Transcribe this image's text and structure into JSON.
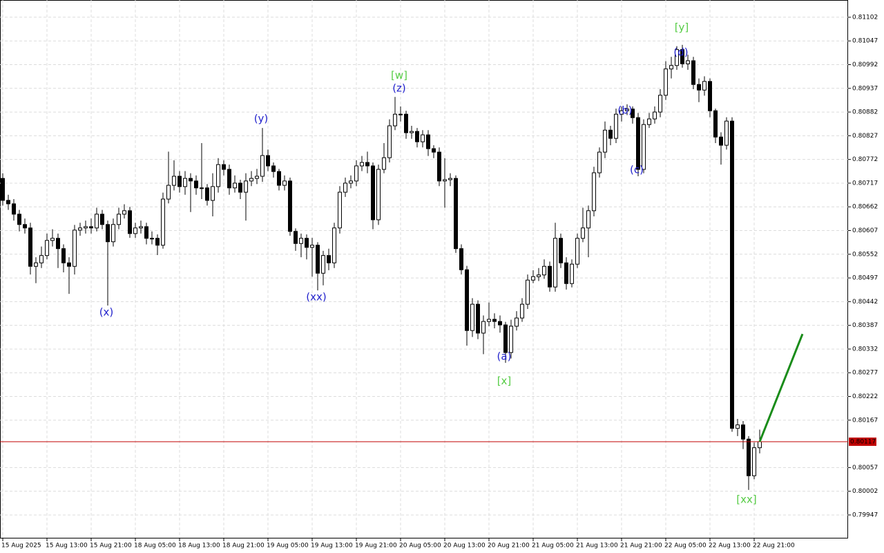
{
  "chart_data": {
    "type": "candlestick",
    "xlim": [
      -0.5,
      153
    ],
    "ylim": [
      0.79894,
      0.81142
    ],
    "yticks": [
      0.81102,
      0.81047,
      0.80992,
      0.80937,
      0.80882,
      0.80827,
      0.80772,
      0.80717,
      0.80662,
      0.80607,
      0.80552,
      0.80497,
      0.80442,
      0.80387,
      0.80332,
      0.80277,
      0.80222,
      0.80167,
      0.80057,
      0.80002,
      0.79947
    ],
    "xticks": [
      {
        "value": 0,
        "label": "15 Aug 2025"
      },
      {
        "value": 8,
        "label": "15 Aug 13:00"
      },
      {
        "value": 16,
        "label": "15 Aug 21:00"
      },
      {
        "value": 24,
        "label": "18 Aug 05:00"
      },
      {
        "value": 32,
        "label": "18 Aug 13:00"
      },
      {
        "value": 40,
        "label": "18 Aug 21:00"
      },
      {
        "value": 48,
        "label": "19 Aug 05:00"
      },
      {
        "value": 56,
        "label": "19 Aug 13:00"
      },
      {
        "value": 64,
        "label": "19 Aug 21:00"
      },
      {
        "value": 72,
        "label": "20 Aug 05:00"
      },
      {
        "value": 80,
        "label": "20 Aug 13:00"
      },
      {
        "value": 88,
        "label": "20 Aug 21:00"
      },
      {
        "value": 96,
        "label": "21 Aug 05:00"
      },
      {
        "value": 104,
        "label": "21 Aug 13:00"
      },
      {
        "value": 112,
        "label": "21 Aug 21:00"
      },
      {
        "value": 120,
        "label": "22 Aug 05:00"
      },
      {
        "value": 128,
        "label": "22 Aug 13:00"
      },
      {
        "value": 136,
        "label": "22 Aug 21:00"
      }
    ],
    "grid": true,
    "bull_color": "#ffffff",
    "bear_color": "#000000",
    "open": [
      0.80728,
      0.80677,
      0.80669,
      0.80645,
      0.80621,
      0.80613,
      0.80524,
      0.80532,
      0.80549,
      0.80584,
      0.80589,
      0.80565,
      0.80532,
      0.80524,
      0.80608,
      0.80613,
      0.80616,
      0.80613,
      0.80645,
      0.80621,
      0.80581,
      0.80621,
      0.80645,
      0.80653,
      0.806,
      0.80613,
      0.80616,
      0.80589,
      0.80589,
      0.80573,
      0.8068,
      0.80712,
      0.80733,
      0.80709,
      0.80728,
      0.80722,
      0.80706,
      0.80706,
      0.80677,
      0.80709,
      0.8076,
      0.80749,
      0.80706,
      0.80717,
      0.80696,
      0.80722,
      0.80728,
      0.80733,
      0.80781,
      0.80757,
      0.80744,
      0.80712,
      0.80722,
      0.80605,
      0.80577,
      0.80589,
      0.80568,
      0.80573,
      0.80508,
      0.80549,
      0.80532,
      0.80613,
      0.80696,
      0.80717,
      0.80722,
      0.80757,
      0.80765,
      0.80757,
      0.80632,
      0.80749,
      0.80776,
      0.8085,
      0.80877,
      0.80877,
      0.80834,
      0.80837,
      0.80813,
      0.80829,
      0.80797,
      0.80789,
      0.80722,
      0.80725,
      0.80728,
      0.80565,
      0.80516,
      0.80375,
      0.80436,
      0.80369,
      0.80396,
      0.80401,
      0.80396,
      0.80388,
      0.80324,
      0.80385,
      0.80404,
      0.80436,
      0.80492,
      0.805,
      0.80504,
      0.80524,
      0.80476,
      0.80589,
      0.80532,
      0.80484,
      0.80529,
      0.80589,
      0.80613,
      0.80653,
      0.80741,
      0.80789,
      0.8084,
      0.80821,
      0.80877,
      0.80885,
      0.80889,
      0.80869,
      0.80749,
      0.80853,
      0.80866,
      0.80882,
      0.80921,
      0.80982,
      0.8099,
      0.81027,
      0.80994,
      0.81001,
      0.80946,
      0.80933,
      0.80953,
      0.80885,
      0.80824,
      0.80805,
      0.80861,
      0.80148,
      0.80156,
      0.80123,
      0.80038,
      0.80103
    ],
    "close": [
      0.80677,
      0.80669,
      0.80645,
      0.80621,
      0.80613,
      0.80524,
      0.80532,
      0.80549,
      0.80584,
      0.80589,
      0.80565,
      0.80532,
      0.80524,
      0.80608,
      0.80613,
      0.80616,
      0.80613,
      0.80645,
      0.80621,
      0.80581,
      0.80621,
      0.80645,
      0.80653,
      0.806,
      0.80613,
      0.80616,
      0.80589,
      0.80589,
      0.80573,
      0.8068,
      0.80712,
      0.80733,
      0.80709,
      0.80728,
      0.80722,
      0.80706,
      0.80706,
      0.80677,
      0.80709,
      0.8076,
      0.80749,
      0.80706,
      0.80717,
      0.80696,
      0.80722,
      0.80728,
      0.80733,
      0.80781,
      0.80757,
      0.80744,
      0.80712,
      0.80722,
      0.80605,
      0.80577,
      0.80589,
      0.80568,
      0.80573,
      0.80508,
      0.80549,
      0.80532,
      0.80613,
      0.80696,
      0.80717,
      0.80722,
      0.80757,
      0.80765,
      0.80757,
      0.80632,
      0.80749,
      0.80776,
      0.8085,
      0.80877,
      0.80877,
      0.80834,
      0.80837,
      0.80813,
      0.80829,
      0.80797,
      0.80789,
      0.80722,
      0.80725,
      0.80728,
      0.80565,
      0.80516,
      0.80375,
      0.80436,
      0.80369,
      0.80396,
      0.80401,
      0.80396,
      0.80388,
      0.80324,
      0.80385,
      0.80404,
      0.80436,
      0.80492,
      0.805,
      0.80504,
      0.80524,
      0.80476,
      0.80589,
      0.80532,
      0.80484,
      0.80529,
      0.80589,
      0.80613,
      0.80653,
      0.80741,
      0.80789,
      0.8084,
      0.80821,
      0.80877,
      0.80885,
      0.80889,
      0.80869,
      0.80749,
      0.80853,
      0.80866,
      0.80882,
      0.80921,
      0.80982,
      0.8099,
      0.81027,
      0.80994,
      0.81001,
      0.80946,
      0.80933,
      0.80953,
      0.80885,
      0.80824,
      0.80805,
      0.80861,
      0.80148,
      0.80156,
      0.80123,
      0.80038,
      0.80103,
      0.80117
    ],
    "high": [
      0.8074,
      0.8069,
      0.8068,
      0.80655,
      0.80635,
      0.80625,
      0.80545,
      0.8057,
      0.806,
      0.8061,
      0.806,
      0.80575,
      0.80545,
      0.8062,
      0.80625,
      0.8063,
      0.80635,
      0.8066,
      0.80655,
      0.8063,
      0.80635,
      0.8066,
      0.80668,
      0.80662,
      0.80625,
      0.8063,
      0.80625,
      0.80605,
      0.80598,
      0.80695,
      0.8079,
      0.8077,
      0.80745,
      0.80745,
      0.8074,
      0.80735,
      0.8081,
      0.80715,
      0.8074,
      0.80775,
      0.8077,
      0.8076,
      0.80735,
      0.80725,
      0.8074,
      0.80745,
      0.8075,
      0.80845,
      0.80795,
      0.80765,
      0.8075,
      0.80735,
      0.8073,
      0.80612,
      0.806,
      0.80598,
      0.8059,
      0.8058,
      0.8056,
      0.80565,
      0.80625,
      0.8071,
      0.8073,
      0.80735,
      0.8077,
      0.8078,
      0.8079,
      0.80765,
      0.8076,
      0.8081,
      0.80865,
      0.80917,
      0.80895,
      0.80885,
      0.8085,
      0.80845,
      0.8084,
      0.8084,
      0.80805,
      0.808,
      0.80775,
      0.8074,
      0.80735,
      0.80575,
      0.80525,
      0.8045,
      0.80445,
      0.8041,
      0.8044,
      0.80415,
      0.8041,
      0.80395,
      0.804,
      0.8042,
      0.8045,
      0.80505,
      0.80515,
      0.8052,
      0.8054,
      0.80535,
      0.80625,
      0.806,
      0.80545,
      0.8054,
      0.806,
      0.8066,
      0.80665,
      0.80755,
      0.808,
      0.8086,
      0.8085,
      0.8089,
      0.80895,
      0.809,
      0.80895,
      0.8088,
      0.80865,
      0.8088,
      0.80895,
      0.80935,
      0.81,
      0.8101,
      0.81035,
      0.81038,
      0.81015,
      0.8101,
      0.8096,
      0.80965,
      0.8096,
      0.8089,
      0.80835,
      0.8087,
      0.8087,
      0.8017,
      0.80165,
      0.8013,
      0.80115,
      0.80145
    ],
    "low": [
      0.80665,
      0.80655,
      0.8063,
      0.80605,
      0.806,
      0.80505,
      0.80485,
      0.8052,
      0.8054,
      0.8057,
      0.8052,
      0.8051,
      0.8046,
      0.80505,
      0.80595,
      0.806,
      0.806,
      0.80605,
      0.8061,
      0.80433,
      0.8057,
      0.8061,
      0.80635,
      0.8059,
      0.8059,
      0.806,
      0.80575,
      0.80575,
      0.8055,
      0.80565,
      0.8067,
      0.807,
      0.80695,
      0.8069,
      0.8065,
      0.8069,
      0.8068,
      0.80665,
      0.8064,
      0.80695,
      0.80735,
      0.8069,
      0.80695,
      0.8068,
      0.8063,
      0.8071,
      0.80715,
      0.8072,
      0.80745,
      0.8073,
      0.807,
      0.807,
      0.80595,
      0.8056,
      0.80545,
      0.8054,
      0.805,
      0.80468,
      0.8048,
      0.80515,
      0.8052,
      0.806,
      0.80685,
      0.80705,
      0.8071,
      0.80745,
      0.8074,
      0.8061,
      0.8062,
      0.8074,
      0.80765,
      0.8084,
      0.8086,
      0.8082,
      0.8082,
      0.808,
      0.808,
      0.8078,
      0.80775,
      0.8071,
      0.8066,
      0.8071,
      0.80555,
      0.80505,
      0.8034,
      0.8036,
      0.80355,
      0.8032,
      0.80385,
      0.8038,
      0.8037,
      0.803,
      0.8031,
      0.80375,
      0.80395,
      0.80425,
      0.80485,
      0.8049,
      0.80495,
      0.80465,
      0.80465,
      0.8052,
      0.8047,
      0.80475,
      0.8052,
      0.8058,
      0.80545,
      0.8064,
      0.8073,
      0.80775,
      0.80805,
      0.8081,
      0.8086,
      0.80875,
      0.80855,
      0.80733,
      0.8074,
      0.80845,
      0.80855,
      0.8087,
      0.8091,
      0.8096,
      0.8098,
      0.80985,
      0.8098,
      0.80935,
      0.80905,
      0.8092,
      0.8087,
      0.8081,
      0.8076,
      0.80795,
      0.8014,
      0.8013,
      0.801,
      0.80005,
      0.8003,
      0.8009
    ],
    "current_price": 0.80117,
    "current_price_color": "#c00000",
    "projection": {
      "x": [
        137,
        144.75
      ],
      "y": [
        0.80117,
        0.80367
      ],
      "color": "#1a8c1a"
    },
    "annotations": [
      {
        "text": "(x)",
        "x": 18.75,
        "y": 0.80417,
        "color": "#2222cc"
      },
      {
        "text": "(y)",
        "x": 46.75,
        "y": 0.80866,
        "color": "#2222cc"
      },
      {
        "text": "(xx)",
        "x": 56.75,
        "y": 0.80452,
        "color": "#2222cc"
      },
      {
        "text": "[w]",
        "x": 71.75,
        "y": 0.80966,
        "color": "#55cc44"
      },
      {
        "text": "(z)",
        "x": 71.75,
        "y": 0.80937,
        "color": "#2222cc"
      },
      {
        "text": "(a)",
        "x": 90.75,
        "y": 0.80314,
        "color": "#2222cc"
      },
      {
        "text": "[x]",
        "x": 90.75,
        "y": 0.80257,
        "color": "#55cc44"
      },
      {
        "text": "(b)",
        "x": 112.625,
        "y": 0.80885,
        "color": "#2222cc"
      },
      {
        "text": "(c)",
        "x": 114.75,
        "y": 0.80747,
        "color": "#2222cc"
      },
      {
        "text": "[y]",
        "x": 122.875,
        "y": 0.81078,
        "color": "#55cc44"
      },
      {
        "text": "(d)",
        "x": 122.75,
        "y": 0.8102,
        "color": "#2222cc"
      },
      {
        "text": "[xx]",
        "x": 134.625,
        "y": 0.79982,
        "color": "#55cc44"
      }
    ]
  }
}
